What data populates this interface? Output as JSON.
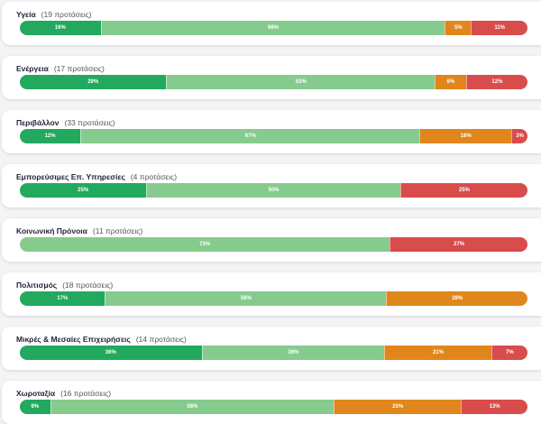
{
  "chart_data": {
    "type": "bar",
    "orientation": "horizontal-stacked-100",
    "segment_colors": [
      "#22a95e",
      "#86cb8e",
      "#e0861c",
      "#d94c4c"
    ],
    "count_suffix": "προτάσεις",
    "rows": [
      {
        "label": "Υγεία",
        "count": "(19 προτάσεις)",
        "values": [
          16,
          68,
          5,
          11
        ]
      },
      {
        "label": "Ενέργεια",
        "count": "(17 προτάσεις)",
        "values": [
          29,
          53,
          6,
          12
        ]
      },
      {
        "label": "Περιβάλλον",
        "count": "(33 προτάσεις)",
        "values": [
          12,
          67,
          18,
          3
        ]
      },
      {
        "label": "Εμπορεύσιμες Επ. Υπηρεσίες",
        "count": "(4 προτάσεις)",
        "values": [
          25,
          50,
          0,
          25
        ]
      },
      {
        "label": "Κοινωνική Πρόνοια",
        "count": "(11 προτάσεις)",
        "values": [
          0,
          73,
          0,
          27
        ]
      },
      {
        "label": "Πολιτισμός",
        "count": "(18 προτάσεις)",
        "values": [
          17,
          56,
          28,
          0
        ]
      },
      {
        "label": "Μικρές & Μεσαίες Επιχειρήσεις",
        "count": "(14 προτάσεις)",
        "values": [
          36,
          36,
          21,
          7
        ]
      },
      {
        "label": "Χωροταξία",
        "count": "(16 προτάσεις)",
        "values": [
          6,
          56,
          25,
          13
        ]
      }
    ]
  }
}
